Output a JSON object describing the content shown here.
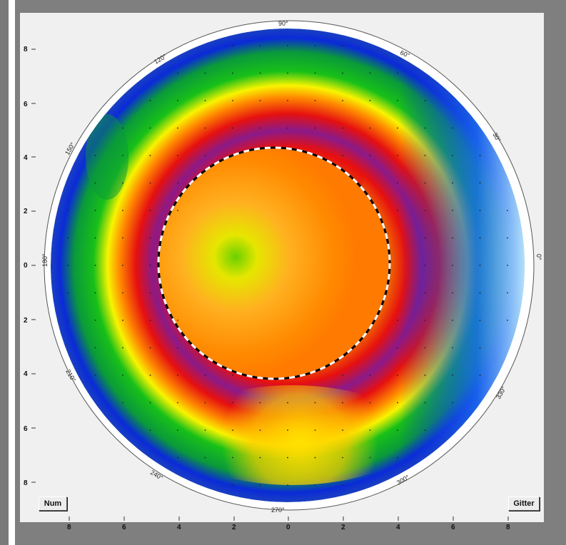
{
  "buttons": {
    "num": "Num",
    "gitter": "Gitter"
  },
  "map": {
    "y_ticks": [
      "8",
      "6",
      "4",
      "2",
      "0",
      "2",
      "4",
      "6",
      "8"
    ],
    "x_ticks": [
      "8",
      "6",
      "4",
      "2",
      "0",
      "2",
      "4",
      "6",
      "8"
    ],
    "angle_labels": {
      "a0": "0°",
      "a30": "30°",
      "a60": "60°",
      "a90": "90°",
      "a120": "120°",
      "a150": "150°",
      "a180": "180°",
      "a210": "210°",
      "a240": "240°",
      "a270": "270°",
      "a300": "300°",
      "a330": "330°"
    },
    "palette": {
      "outer_blue": "#0a2ad8",
      "light_blue": "#7fe0ff",
      "green": "#18c018",
      "yellow": "#f8f400",
      "orange": "#ff9a00",
      "red": "#e61010",
      "purple": "#8a1a8a",
      "background": "#f0f0f0",
      "frame": "#7f7f7f"
    }
  }
}
